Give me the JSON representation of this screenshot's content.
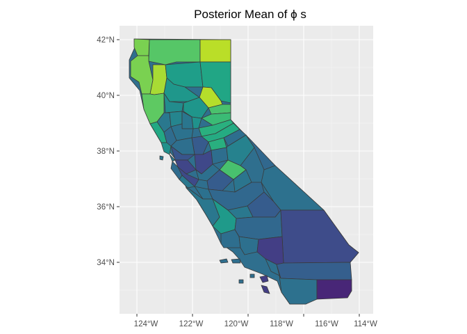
{
  "title": "Posterior Mean of ϕ s",
  "colors": {
    "panel_bg": "#EBEBEB",
    "grid": "#FFFFFF",
    "county_border": "#3A3A3A",
    "palette_scale": "viridis"
  },
  "map": {
    "region": "California",
    "x_ticks": [
      "124°W",
      "122°W",
      "120°W",
      "118°W",
      "116°W",
      "114°W"
    ],
    "y_ticks": [
      "42°N",
      "40°N",
      "38°N",
      "36°N",
      "34°N"
    ],
    "xlim_deg_west": [
      125.2,
      113.7
    ],
    "ylim_deg_north": [
      32.4,
      42.5
    ],
    "grid": true,
    "legend": "none",
    "fill_scale": "viridis",
    "fill_notes": "low values purple (Imperial County), high values yellow-green (northern counties)"
  }
}
